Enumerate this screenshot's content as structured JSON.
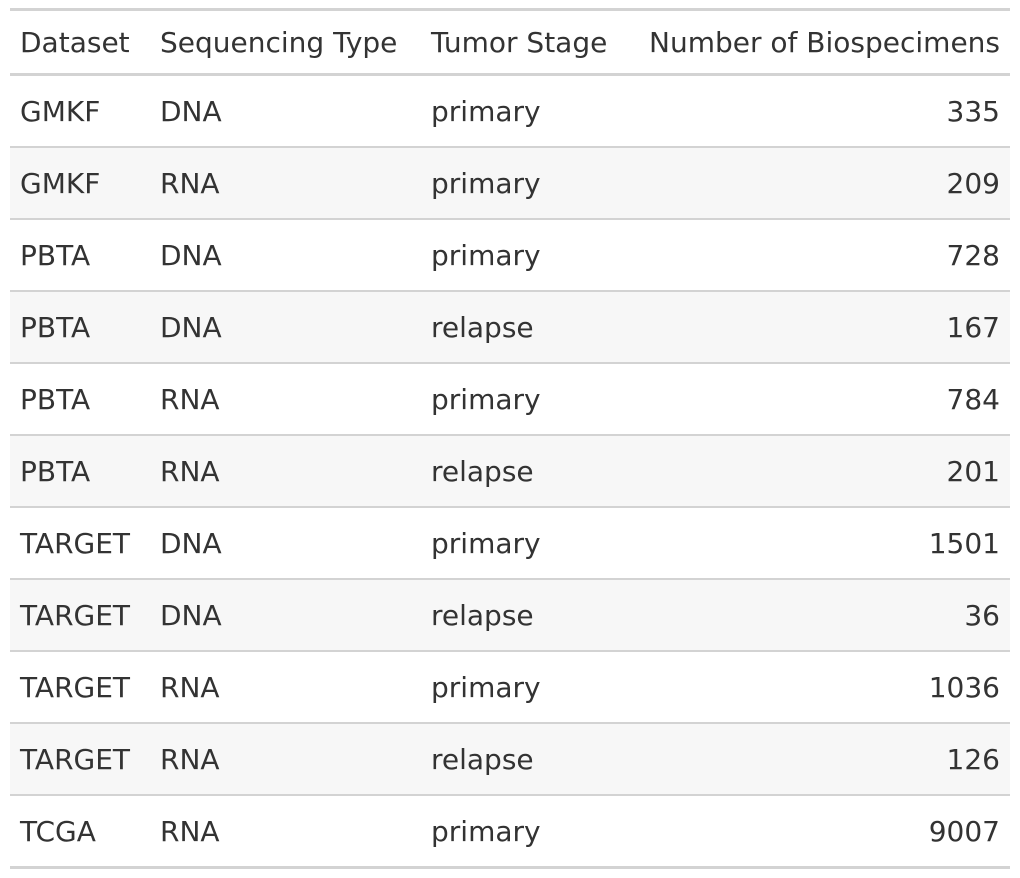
{
  "chart_data": {
    "type": "table",
    "columns": [
      "Dataset",
      "Sequencing Type",
      "Tumor Stage",
      "Number of Biospecimens"
    ],
    "rows": [
      {
        "dataset": "GMKF",
        "sequencing_type": "DNA",
        "tumor_stage": "primary",
        "number_of_biospecimens": 335
      },
      {
        "dataset": "GMKF",
        "sequencing_type": "RNA",
        "tumor_stage": "primary",
        "number_of_biospecimens": 209
      },
      {
        "dataset": "PBTA",
        "sequencing_type": "DNA",
        "tumor_stage": "primary",
        "number_of_biospecimens": 728
      },
      {
        "dataset": "PBTA",
        "sequencing_type": "DNA",
        "tumor_stage": "relapse",
        "number_of_biospecimens": 167
      },
      {
        "dataset": "PBTA",
        "sequencing_type": "RNA",
        "tumor_stage": "primary",
        "number_of_biospecimens": 784
      },
      {
        "dataset": "PBTA",
        "sequencing_type": "RNA",
        "tumor_stage": "relapse",
        "number_of_biospecimens": 201
      },
      {
        "dataset": "TARGET",
        "sequencing_type": "DNA",
        "tumor_stage": "primary",
        "number_of_biospecimens": 1501
      },
      {
        "dataset": "TARGET",
        "sequencing_type": "DNA",
        "tumor_stage": "relapse",
        "number_of_biospecimens": 36
      },
      {
        "dataset": "TARGET",
        "sequencing_type": "RNA",
        "tumor_stage": "primary",
        "number_of_biospecimens": 1036
      },
      {
        "dataset": "TARGET",
        "sequencing_type": "RNA",
        "tumor_stage": "relapse",
        "number_of_biospecimens": 126
      },
      {
        "dataset": "TCGA",
        "sequencing_type": "RNA",
        "tumor_stage": "primary",
        "number_of_biospecimens": 9007
      }
    ]
  },
  "colors": {
    "text": "#333333",
    "rule": "#d3d3d3",
    "stripe": "#f7f7f7",
    "background": "#ffffff"
  }
}
